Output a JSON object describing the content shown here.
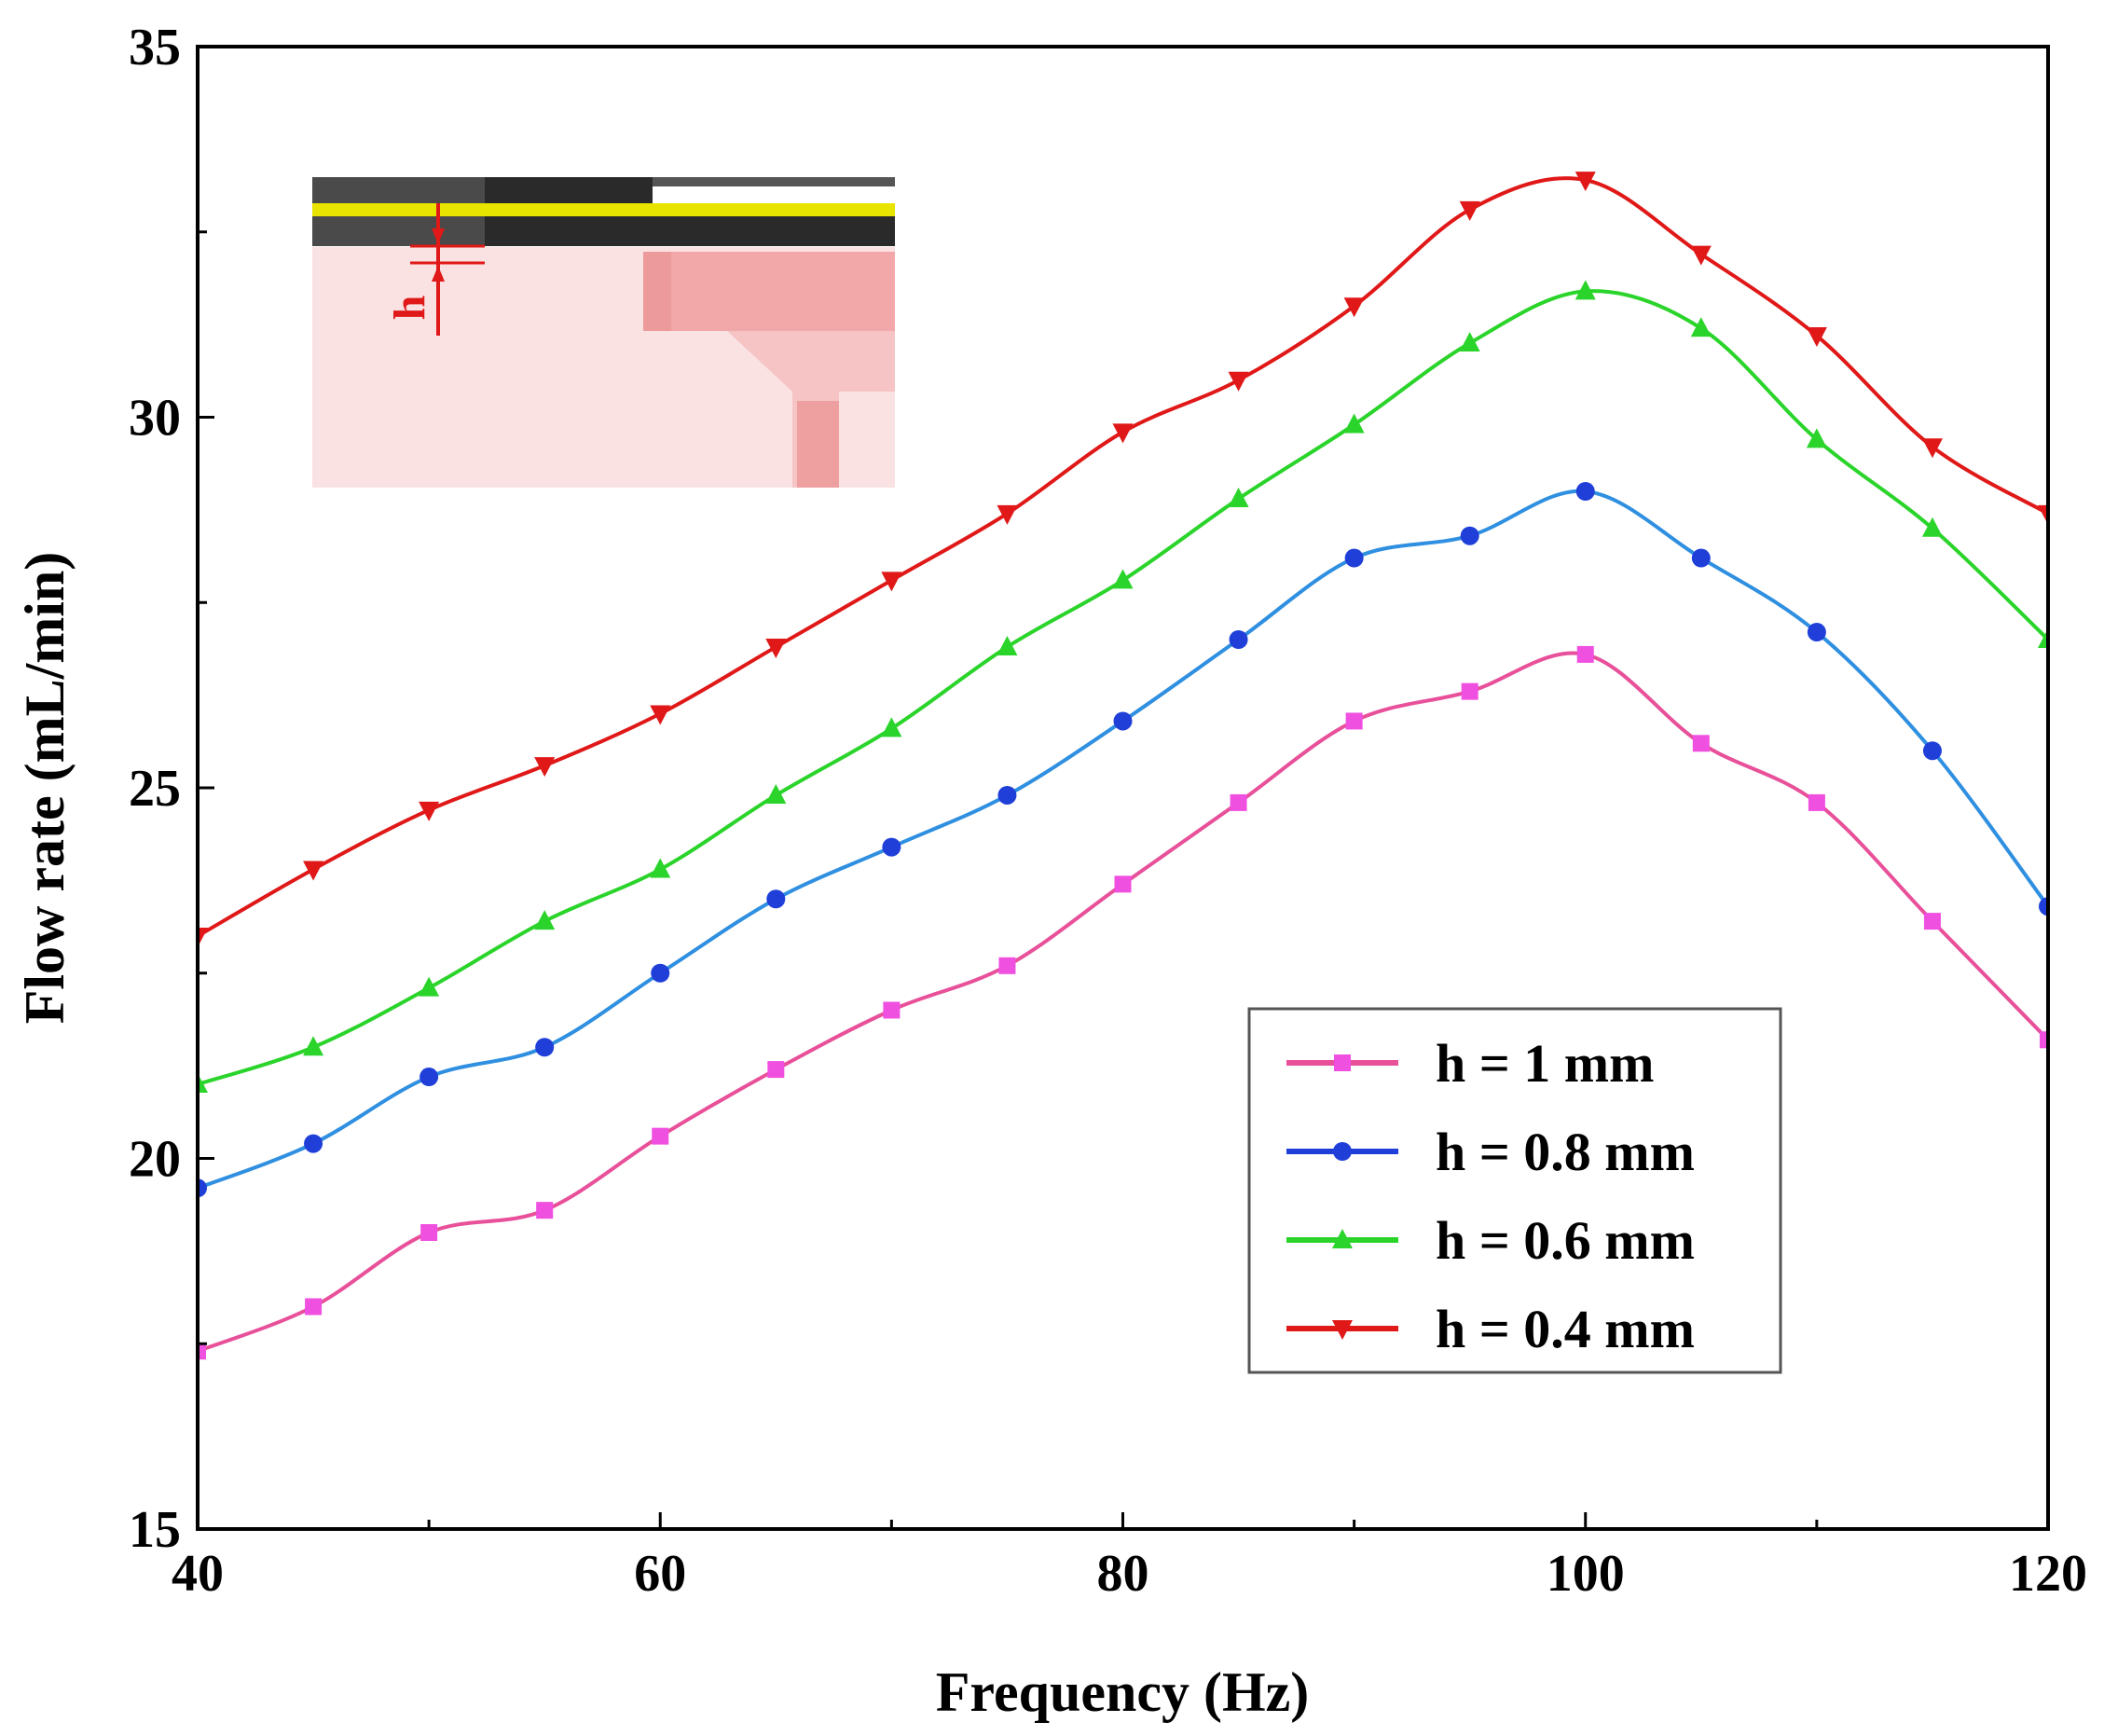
{
  "chart_data": {
    "type": "line",
    "title": "",
    "xlabel": "Frequency (Hz)",
    "ylabel": "Flow rate (mL/min)",
    "xlim": [
      40,
      120
    ],
    "ylim": [
      15,
      35
    ],
    "xticks": [
      40,
      60,
      80,
      100,
      120
    ],
    "yticks": [
      15,
      20,
      25,
      30,
      35
    ],
    "x_tick_labels": [
      "40",
      "60",
      "80",
      "100",
      "120"
    ],
    "y_tick_labels": [
      "15",
      "20",
      "25",
      "30",
      "35"
    ],
    "grid": false,
    "legend_position": "bottom-right",
    "x": [
      40,
      45,
      50,
      55,
      60,
      65,
      70,
      75,
      80,
      85,
      90,
      95,
      100,
      105,
      110,
      115,
      120
    ],
    "series": [
      {
        "name": "h = 1 mm",
        "color": "#e8509a",
        "marker_color": "#f050e0",
        "marker": "square",
        "values": [
          17.4,
          18.0,
          19.0,
          19.3,
          20.3,
          21.2,
          22.0,
          22.6,
          23.7,
          24.8,
          25.9,
          26.3,
          26.8,
          25.6,
          24.8,
          23.2,
          21.6
        ]
      },
      {
        "name": "h = 0.8 mm",
        "color": "#2f8fe0",
        "marker_color": "#1f3fd8",
        "marker": "circle",
        "values": [
          19.6,
          20.2,
          21.1,
          21.5,
          22.5,
          23.5,
          24.2,
          24.9,
          25.9,
          27.0,
          28.1,
          28.4,
          29.0,
          28.1,
          27.1,
          25.5,
          23.4
        ]
      },
      {
        "name": "h = 0.6 mm",
        "color": "#2ad42a",
        "marker_color": "#2ad42a",
        "marker": "triangle-up",
        "values": [
          21.0,
          21.5,
          22.3,
          23.2,
          23.9,
          24.9,
          25.8,
          26.9,
          27.8,
          28.9,
          29.9,
          31.0,
          31.7,
          31.2,
          29.7,
          28.5,
          27.0
        ]
      },
      {
        "name": "h = 0.4 mm",
        "color": "#e01818",
        "marker_color": "#e01818",
        "marker": "triangle-down",
        "values": [
          23.0,
          23.9,
          24.7,
          25.3,
          26.0,
          26.9,
          27.8,
          28.7,
          29.8,
          30.5,
          31.5,
          32.8,
          33.2,
          32.2,
          31.1,
          29.6,
          28.7
        ]
      }
    ],
    "inset": {
      "label": "h",
      "arrow_color": "#e01818"
    }
  }
}
